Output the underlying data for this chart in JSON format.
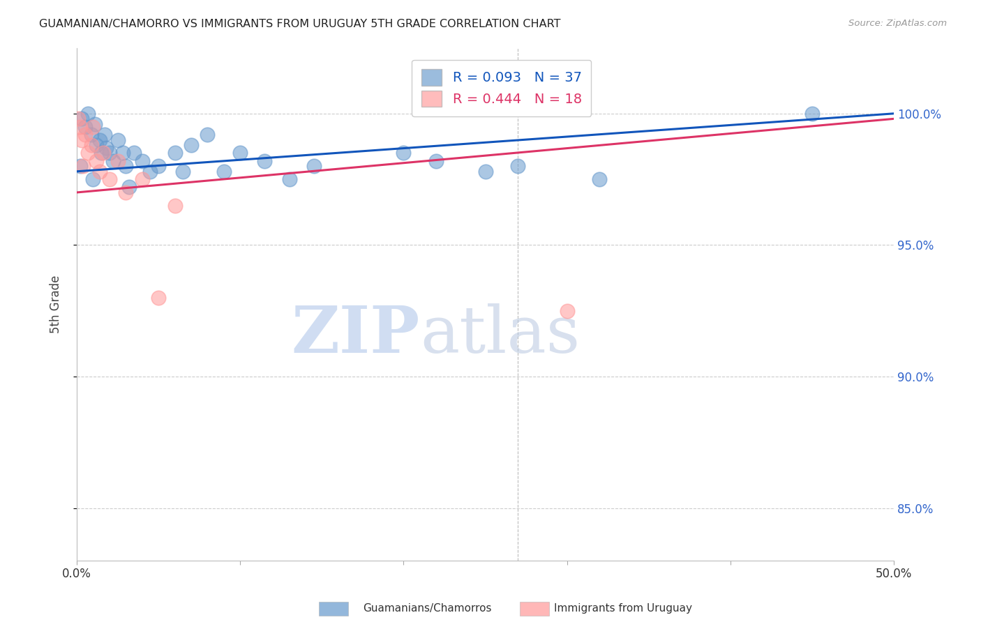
{
  "title": "GUAMANIAN/CHAMORRO VS IMMIGRANTS FROM URUGUAY 5TH GRADE CORRELATION CHART",
  "source": "Source: ZipAtlas.com",
  "xlabel": "",
  "ylabel": "5th Grade",
  "xlim": [
    0.0,
    50.0
  ],
  "ylim": [
    83.0,
    102.5
  ],
  "yticks": [
    85.0,
    90.0,
    95.0,
    100.0
  ],
  "xticks": [
    0.0,
    10.0,
    20.0,
    30.0,
    40.0,
    50.0
  ],
  "xtick_labels": [
    "0.0%",
    "",
    "",
    "",
    "",
    "50.0%"
  ],
  "blue_label": "Guamanians/Chamorros",
  "pink_label": "Immigrants from Uruguay",
  "blue_R": 0.093,
  "blue_N": 37,
  "pink_R": 0.444,
  "pink_N": 18,
  "blue_color": "#6699CC",
  "pink_color": "#FF9999",
  "blue_line_color": "#1155BB",
  "pink_line_color": "#DD3366",
  "blue_line_x0": 0.0,
  "blue_line_y0": 97.8,
  "blue_line_x1": 50.0,
  "blue_line_y1": 100.0,
  "pink_line_x0": 0.0,
  "pink_line_y0": 97.0,
  "pink_line_x1": 50.0,
  "pink_line_y1": 99.8,
  "blue_scatter_x": [
    0.3,
    0.5,
    0.7,
    0.9,
    1.1,
    1.2,
    1.4,
    1.5,
    1.7,
    1.8,
    2.0,
    2.2,
    2.5,
    3.0,
    3.5,
    4.0,
    4.5,
    5.0,
    6.0,
    7.0,
    8.0,
    9.0,
    10.0,
    11.5,
    13.0,
    14.5,
    20.0,
    22.0,
    25.0,
    27.0,
    32.0,
    45.0,
    0.2,
    1.0,
    2.8,
    3.2,
    6.5
  ],
  "blue_scatter_y": [
    99.8,
    99.5,
    100.0,
    99.2,
    99.6,
    98.8,
    99.0,
    98.5,
    99.2,
    98.7,
    98.5,
    98.2,
    99.0,
    98.0,
    98.5,
    98.2,
    97.8,
    98.0,
    98.5,
    98.8,
    99.2,
    97.8,
    98.5,
    98.2,
    97.5,
    98.0,
    98.5,
    98.2,
    97.8,
    98.0,
    97.5,
    100.0,
    98.0,
    97.5,
    98.5,
    97.2,
    97.8
  ],
  "pink_scatter_x": [
    0.1,
    0.2,
    0.3,
    0.5,
    0.7,
    0.9,
    1.0,
    1.2,
    1.4,
    1.6,
    2.0,
    2.5,
    3.0,
    4.0,
    5.0,
    6.0,
    0.4,
    30.0
  ],
  "pink_scatter_y": [
    99.8,
    99.5,
    99.0,
    99.2,
    98.5,
    98.8,
    99.5,
    98.2,
    97.8,
    98.5,
    97.5,
    98.2,
    97.0,
    97.5,
    93.0,
    96.5,
    98.0,
    92.5
  ],
  "watermark_zip": "ZIP",
  "watermark_atlas": "atlas",
  "background_color": "#ffffff",
  "grid_color": "#cccccc"
}
